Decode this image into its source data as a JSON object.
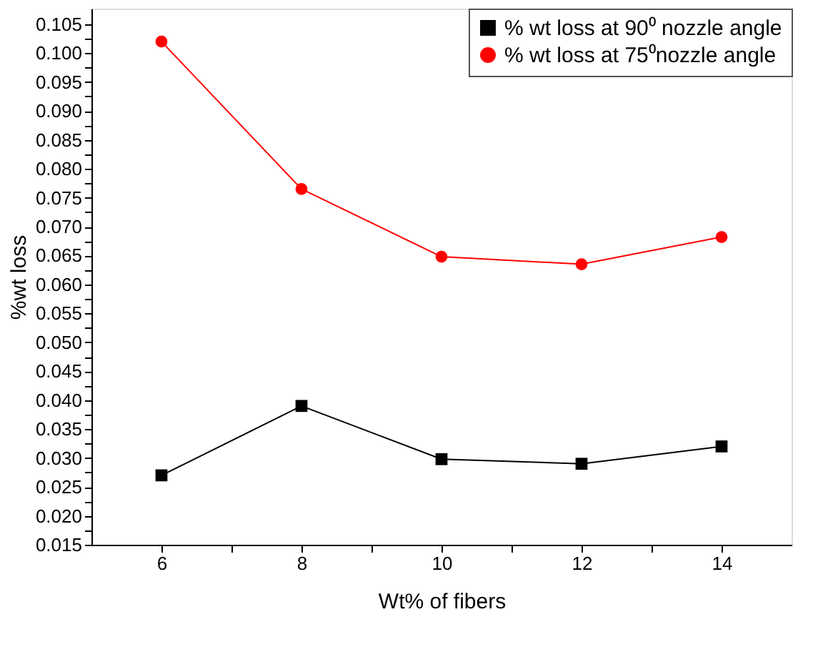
{
  "chart_data": {
    "type": "line",
    "xlabel": "Wt% of fibers",
    "ylabel": "%wt loss",
    "x": [
      6,
      8,
      10,
      12,
      14
    ],
    "series": [
      {
        "name": "% wt loss at 90⁰ nozzle angle",
        "color": "#000000",
        "marker": "square",
        "values": [
          0.027,
          0.039,
          0.0298,
          0.029,
          0.032
        ]
      },
      {
        "name": "% wt loss  at 75⁰nozzle angle",
        "color": "#ff0000",
        "marker": "circle",
        "values": [
          0.102,
          0.0765,
          0.0648,
          0.0635,
          0.0682
        ]
      }
    ],
    "xlim": [
      5,
      15
    ],
    "xticks": [
      6,
      {
        "value": 7,
        "label": null
      },
      8,
      {
        "value": 9,
        "label": null
      },
      10,
      {
        "value": 11,
        "label": null
      },
      12,
      {
        "value": 13,
        "label": null
      },
      14
    ],
    "ylim": [
      0.015,
      0.1077
    ],
    "yticks": [
      {
        "value": 0.015,
        "label": "0.015"
      },
      {
        "value": 0.0175,
        "label": null
      },
      {
        "value": 0.02,
        "label": "0.020"
      },
      {
        "value": 0.0225,
        "label": null
      },
      {
        "value": 0.025,
        "label": "0.025"
      },
      {
        "value": 0.0275,
        "label": null
      },
      {
        "value": 0.03,
        "label": "0.030"
      },
      {
        "value": 0.0325,
        "label": null
      },
      {
        "value": 0.035,
        "label": "0.035"
      },
      {
        "value": 0.0375,
        "label": null
      },
      {
        "value": 0.04,
        "label": "0.040"
      },
      {
        "value": 0.0425,
        "label": null
      },
      {
        "value": 0.045,
        "label": "0.045"
      },
      {
        "value": 0.0475,
        "label": null
      },
      {
        "value": 0.05,
        "label": "0.050"
      },
      {
        "value": 0.0525,
        "label": null
      },
      {
        "value": 0.055,
        "label": "0.055"
      },
      {
        "value": 0.0575,
        "label": null
      },
      {
        "value": 0.06,
        "label": "0.060"
      },
      {
        "value": 0.0625,
        "label": null
      },
      {
        "value": 0.065,
        "label": "0.065"
      },
      {
        "value": 0.0675,
        "label": null
      },
      {
        "value": 0.07,
        "label": "0.070"
      },
      {
        "value": 0.0725,
        "label": null
      },
      {
        "value": 0.075,
        "label": "0.075"
      },
      {
        "value": 0.0775,
        "label": null
      },
      {
        "value": 0.08,
        "label": "0.080"
      },
      {
        "value": 0.0825,
        "label": null
      },
      {
        "value": 0.085,
        "label": "0.085"
      },
      {
        "value": 0.0875,
        "label": null
      },
      {
        "value": 0.09,
        "label": "0.090"
      },
      {
        "value": 0.0925,
        "label": null
      },
      {
        "value": 0.095,
        "label": "0.095"
      },
      {
        "value": 0.0975,
        "label": null
      },
      {
        "value": 0.1,
        "label": "0.100"
      },
      {
        "value": 0.1025,
        "label": null
      },
      {
        "value": 0.105,
        "label": "0.105"
      }
    ],
    "grid": false,
    "legend": "top right",
    "line_style": "solid"
  }
}
